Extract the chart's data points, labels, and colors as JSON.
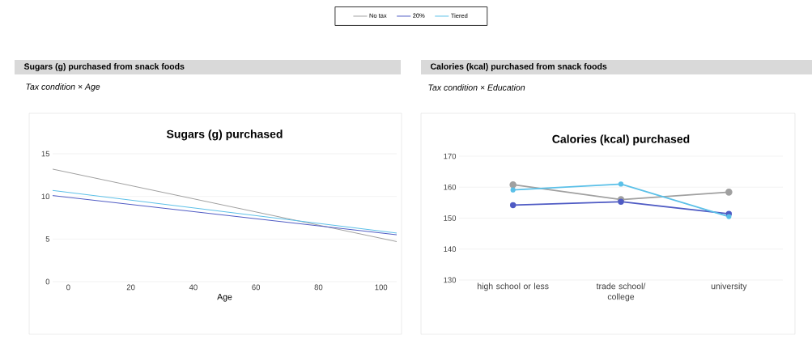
{
  "chart_data": [
    {
      "type": "line",
      "title": "Sugars (g) purchased from snack foods",
      "subtitle": "Tax condition × Age",
      "annotations": [
        "Sugars (g) purchased"
      ],
      "xlabel": "Age",
      "x": [
        -5,
        105
      ],
      "xlim": [
        -5,
        105
      ],
      "xticks": [
        0,
        20,
        40,
        60,
        80,
        100
      ],
      "ylim": [
        0,
        15
      ],
      "yticks": [
        0,
        5,
        10,
        15
      ],
      "series": [
        {
          "name": "No tax",
          "color": "#a0a0a0",
          "values": [
            13.2,
            4.7
          ]
        },
        {
          "name": "20%",
          "color": "#4f5bc4",
          "values": [
            10.1,
            5.5
          ]
        },
        {
          "name": "Tiered",
          "color": "#5bc0e8",
          "values": [
            10.7,
            5.7
          ]
        }
      ],
      "grid": "y",
      "legend": "top",
      "marker": "none"
    },
    {
      "type": "line",
      "title": "Calories (kcal) purchased from snack foods",
      "subtitle": "Tax condition × Education",
      "annotations": [
        "Calories (kcal) purchased"
      ],
      "categories": [
        "high school or less",
        "trade school/ college",
        "university"
      ],
      "ylim": [
        130,
        170
      ],
      "yticks": [
        130,
        140,
        150,
        160,
        170
      ],
      "series": [
        {
          "color": "#a0a0a0",
          "values": [
            160.8,
            156.0,
            158.4
          ]
        },
        {
          "color": "#4f5bc4",
          "values": [
            154.2,
            155.3,
            151.4
          ]
        },
        {
          "color": "#5bc0e8",
          "values": [
            159.1,
            161.0,
            150.5
          ]
        }
      ],
      "grid": "y",
      "marker": "circle"
    }
  ]
}
